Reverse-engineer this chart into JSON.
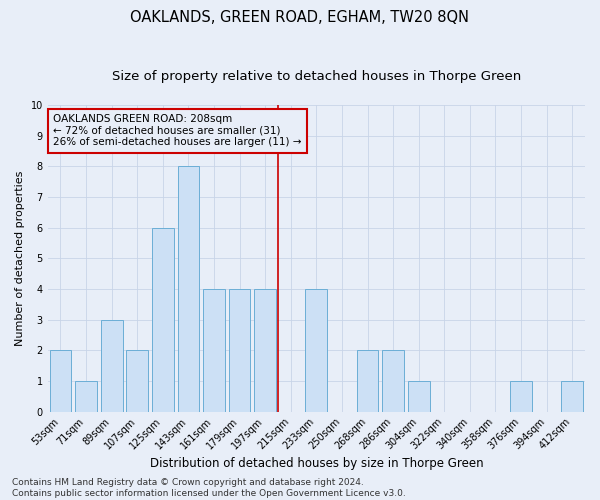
{
  "title": "OAKLANDS, GREEN ROAD, EGHAM, TW20 8QN",
  "subtitle": "Size of property relative to detached houses in Thorpe Green",
  "xlabel": "Distribution of detached houses by size in Thorpe Green",
  "ylabel": "Number of detached properties",
  "categories": [
    "53sqm",
    "71sqm",
    "89sqm",
    "107sqm",
    "125sqm",
    "143sqm",
    "161sqm",
    "179sqm",
    "197sqm",
    "215sqm",
    "233sqm",
    "250sqm",
    "268sqm",
    "286sqm",
    "304sqm",
    "322sqm",
    "340sqm",
    "358sqm",
    "376sqm",
    "394sqm",
    "412sqm"
  ],
  "values": [
    2,
    1,
    3,
    2,
    6,
    8,
    4,
    4,
    4,
    0,
    4,
    0,
    2,
    2,
    1,
    0,
    0,
    0,
    1,
    0,
    1
  ],
  "bar_color": "#cce0f5",
  "bar_edgecolor": "#6baed6",
  "vline_x": 8.5,
  "vline_color": "#cc0000",
  "annotation_text": "OAKLANDS GREEN ROAD: 208sqm\n← 72% of detached houses are smaller (31)\n26% of semi-detached houses are larger (11) →",
  "annotation_box_color": "#cc0000",
  "ylim": [
    0,
    10
  ],
  "yticks": [
    0,
    1,
    2,
    3,
    4,
    5,
    6,
    7,
    8,
    9,
    10
  ],
  "grid_color": "#c8d4e8",
  "background_color": "#e8eef8",
  "footer": "Contains HM Land Registry data © Crown copyright and database right 2024.\nContains public sector information licensed under the Open Government Licence v3.0.",
  "title_fontsize": 10.5,
  "subtitle_fontsize": 9.5,
  "xlabel_fontsize": 8.5,
  "ylabel_fontsize": 8,
  "tick_fontsize": 7,
  "annotation_fontsize": 7.5,
  "footer_fontsize": 6.5
}
